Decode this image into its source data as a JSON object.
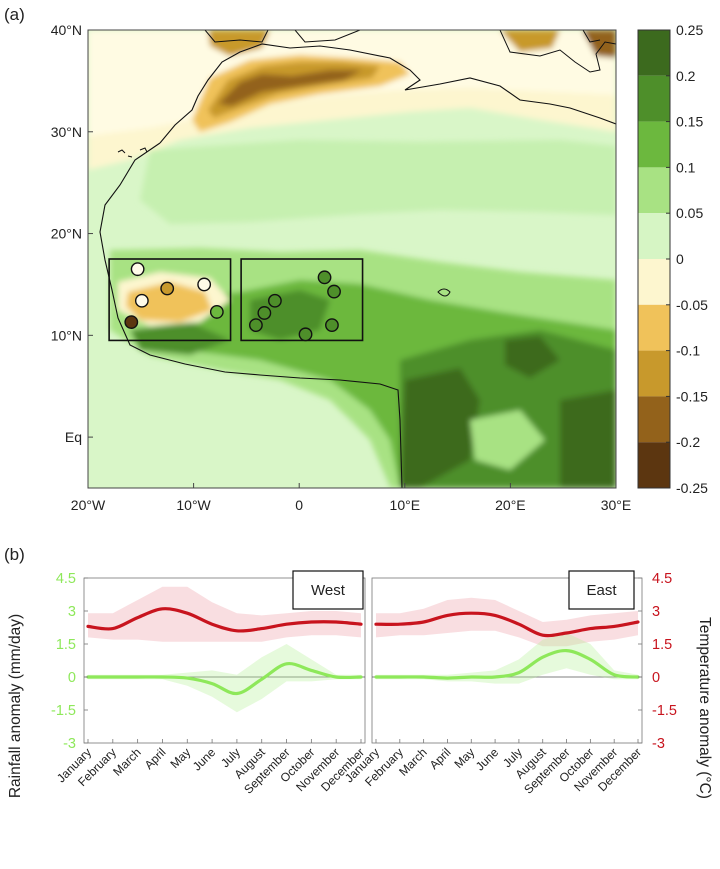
{
  "panel_a": {
    "label": "(a)",
    "lat_ticks": [
      "40°N",
      "30°N",
      "20°N",
      "10°N",
      "Eq"
    ],
    "lon_ticks": [
      "20°W",
      "10°W",
      "0",
      "10°E",
      "20°E",
      "30°E"
    ],
    "colorbar": {
      "ticks": [
        "0.25",
        "0.2",
        "0.15",
        "0.1",
        "0.05",
        "0",
        "-0.05",
        "-0.1",
        "-0.15",
        "-0.2",
        "-0.25"
      ],
      "colors": [
        "#3c6a1e",
        "#4e8f2a",
        "#6cb83e",
        "#a8e283",
        "#d6f5c4",
        "#fdf6cf",
        "#f0c25a",
        "#c8992c",
        "#93621b",
        "#5c3610"
      ]
    }
  },
  "panel_b": {
    "label": "(b)",
    "left_axis_label": "Rainfall anomaly (mm/day)",
    "right_axis_label": "Temperature anomaly (°C)",
    "y_ticks": [
      "4.5",
      "3",
      "1.5",
      "0",
      "-1.5",
      "-3"
    ],
    "colors": {
      "rainfall": "#8ee85a",
      "temperature": "#c8141e"
    }
  },
  "chart_data": [
    {
      "type": "heatmap",
      "description_source": "panel (a) map",
      "xlim": [
        -20,
        30
      ],
      "ylim": [
        -5,
        40
      ],
      "colorbar_range": [
        -0.25,
        0.25
      ],
      "colorbar_step": 0.05,
      "boxes": [
        {
          "lon": [
            -18,
            -6.5
          ],
          "lat": [
            9.5,
            17.5
          ]
        },
        {
          "lon": [
            -5.5,
            6
          ],
          "lat": [
            9.5,
            17.5
          ]
        }
      ],
      "stations": [
        {
          "lon": -15.3,
          "lat": 16.5,
          "value": 0.0
        },
        {
          "lon": -12.5,
          "lat": 14.6,
          "value": -0.12
        },
        {
          "lon": -9.0,
          "lat": 15.0,
          "value": 0.0
        },
        {
          "lon": -14.9,
          "lat": 13.4,
          "value": 0.0
        },
        {
          "lon": -15.9,
          "lat": 11.3,
          "value": -0.22
        },
        {
          "lon": -7.8,
          "lat": 12.3,
          "value": 0.12
        },
        {
          "lon": -2.3,
          "lat": 13.4,
          "value": 0.18
        },
        {
          "lon": -3.3,
          "lat": 12.2,
          "value": 0.18
        },
        {
          "lon": -4.1,
          "lat": 11.0,
          "value": 0.18
        },
        {
          "lon": 0.6,
          "lat": 10.1,
          "value": 0.18
        },
        {
          "lon": 2.4,
          "lat": 15.7,
          "value": 0.18
        },
        {
          "lon": 3.3,
          "lat": 14.3,
          "value": 0.18
        },
        {
          "lon": 3.1,
          "lat": 11.0,
          "value": 0.18
        }
      ]
    },
    {
      "type": "line",
      "title": "West",
      "categories": [
        "January",
        "February",
        "March",
        "April",
        "May",
        "June",
        "July",
        "August",
        "September",
        "October",
        "November",
        "December"
      ],
      "ylim": [
        -3,
        4.5
      ],
      "series": [
        {
          "values": [
            2.3,
            2.2,
            2.7,
            3.1,
            2.9,
            2.4,
            2.1,
            2.2,
            2.4,
            2.5,
            2.5,
            2.4
          ],
          "lower": [
            1.8,
            1.7,
            1.7,
            1.6,
            1.6,
            1.6,
            1.6,
            1.6,
            1.8,
            1.9,
            1.9,
            1.8
          ],
          "upper": [
            2.9,
            2.9,
            3.5,
            4.1,
            4.1,
            3.4,
            2.9,
            2.8,
            2.9,
            3.0,
            3.0,
            2.9
          ]
        },
        {
          "values": [
            0.0,
            0.0,
            0.0,
            0.0,
            -0.05,
            -0.3,
            -0.75,
            -0.1,
            0.6,
            0.3,
            0.0,
            0.0
          ],
          "lower": [
            -0.1,
            -0.1,
            -0.1,
            -0.1,
            -0.4,
            -0.9,
            -1.6,
            -1.0,
            -0.2,
            -0.2,
            -0.1,
            -0.1
          ],
          "upper": [
            0.1,
            0.1,
            0.1,
            0.1,
            0.2,
            0.3,
            0.1,
            0.9,
            1.5,
            0.8,
            0.1,
            0.1
          ]
        }
      ]
    },
    {
      "type": "line",
      "title": "East",
      "categories": [
        "January",
        "February",
        "March",
        "April",
        "May",
        "June",
        "July",
        "August",
        "September",
        "October",
        "November",
        "December"
      ],
      "ylim": [
        -3,
        4.5
      ],
      "series": [
        {
          "values": [
            2.4,
            2.4,
            2.5,
            2.8,
            2.9,
            2.8,
            2.4,
            1.9,
            2.0,
            2.2,
            2.3,
            2.5
          ],
          "lower": [
            1.8,
            1.9,
            1.9,
            2.0,
            2.1,
            2.1,
            1.8,
            1.4,
            1.4,
            1.6,
            1.7,
            1.9
          ],
          "upper": [
            2.9,
            2.9,
            3.1,
            3.5,
            3.6,
            3.5,
            3.0,
            2.5,
            2.6,
            2.8,
            2.9,
            3.0
          ]
        },
        {
          "values": [
            0.0,
            0.0,
            0.0,
            -0.05,
            0.0,
            0.0,
            0.2,
            0.9,
            1.2,
            0.8,
            0.1,
            0.0
          ],
          "lower": [
            -0.1,
            -0.1,
            -0.1,
            -0.2,
            -0.2,
            -0.3,
            -0.3,
            0.1,
            0.4,
            0.1,
            -0.1,
            -0.1
          ],
          "upper": [
            0.1,
            0.1,
            0.1,
            0.1,
            0.2,
            0.3,
            0.8,
            1.7,
            2.0,
            1.5,
            0.3,
            0.1
          ]
        }
      ]
    }
  ]
}
